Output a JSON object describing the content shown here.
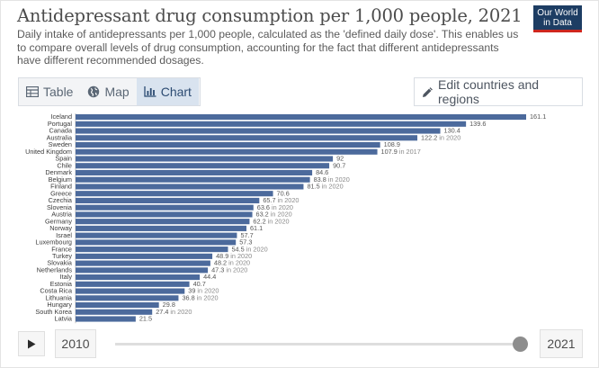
{
  "header": {
    "title": "Antidepressant drug consumption per 1,000 people, 2021",
    "subtitle": "Daily intake of antidepressants per 1,000 people, calculated as the 'defined daily dose'. This enables us to compare overall levels of drug consumption, accounting for the fact that different antidepressants have different recommended dosages.",
    "logo_line1": "Our World",
    "logo_line2": "in Data"
  },
  "tabs": [
    {
      "label": "Table",
      "icon": "table-icon",
      "active": false
    },
    {
      "label": "Map",
      "icon": "globe-icon",
      "active": false
    },
    {
      "label": "Chart",
      "icon": "bar-chart-icon",
      "active": true
    }
  ],
  "edit_button": {
    "label": "Edit countries and regions",
    "icon": "pencil-icon"
  },
  "timeline": {
    "start_year": "2010",
    "end_year": "2021",
    "play_icon": "play-icon",
    "position": 1.0
  },
  "colors": {
    "bar": "#4c6a9c",
    "accent": "#2c4b72",
    "logo_bg": "#1d3d63",
    "logo_stripe": "#ce261e"
  },
  "chart_data": {
    "type": "bar",
    "orientation": "horizontal",
    "title": "Antidepressant drug consumption per 1,000 people, 2021",
    "xlim": [
      0,
      161.1
    ],
    "grid": false,
    "categories": [
      "Iceland",
      "Portugal",
      "Canada",
      "Australia",
      "Sweden",
      "United Kingdom",
      "Spain",
      "Chile",
      "Denmark",
      "Belgium",
      "Finland",
      "Greece",
      "Czechia",
      "Slovenia",
      "Austria",
      "Germany",
      "Norway",
      "Israel",
      "Luxembourg",
      "France",
      "Turkey",
      "Slovakia",
      "Netherlands",
      "Italy",
      "Estonia",
      "Costa Rica",
      "Lithuania",
      "Hungary",
      "South Korea",
      "Latvia"
    ],
    "values": [
      161.1,
      139.6,
      130.4,
      122.2,
      108.9,
      107.9,
      92,
      90.7,
      84.6,
      83.8,
      81.5,
      70.6,
      65.7,
      63.6,
      63.2,
      62.2,
      61.1,
      57.7,
      57.3,
      54.5,
      48.9,
      48.2,
      47.3,
      44.4,
      40.7,
      39,
      36.8,
      29.8,
      27.4,
      21.5
    ],
    "labels": [
      "161.1",
      "139.6",
      "130.4",
      "122.2",
      "108.9",
      "107.9",
      "92",
      "90.7",
      "84.6",
      "83.8",
      "81.5",
      "70.6",
      "65.7",
      "63.6",
      "63.2",
      "62.2",
      "61.1",
      "57.7",
      "57.3",
      "54.5",
      "48.9",
      "48.2",
      "47.3",
      "44.4",
      "40.7",
      "39",
      "36.8",
      "29.8",
      "27.4",
      "21.5"
    ],
    "year_notes": [
      "",
      "",
      "",
      "in 2020",
      "",
      "in 2017",
      "",
      "",
      "",
      "in 2020",
      "in 2020",
      "",
      "in 2020",
      "in 2020",
      "in 2020",
      "in 2020",
      "",
      "",
      "",
      "in 2020",
      "in 2020",
      "in 2020",
      "in 2020",
      "",
      "",
      "in 2020",
      "in 2020",
      "",
      "in 2020",
      ""
    ]
  }
}
